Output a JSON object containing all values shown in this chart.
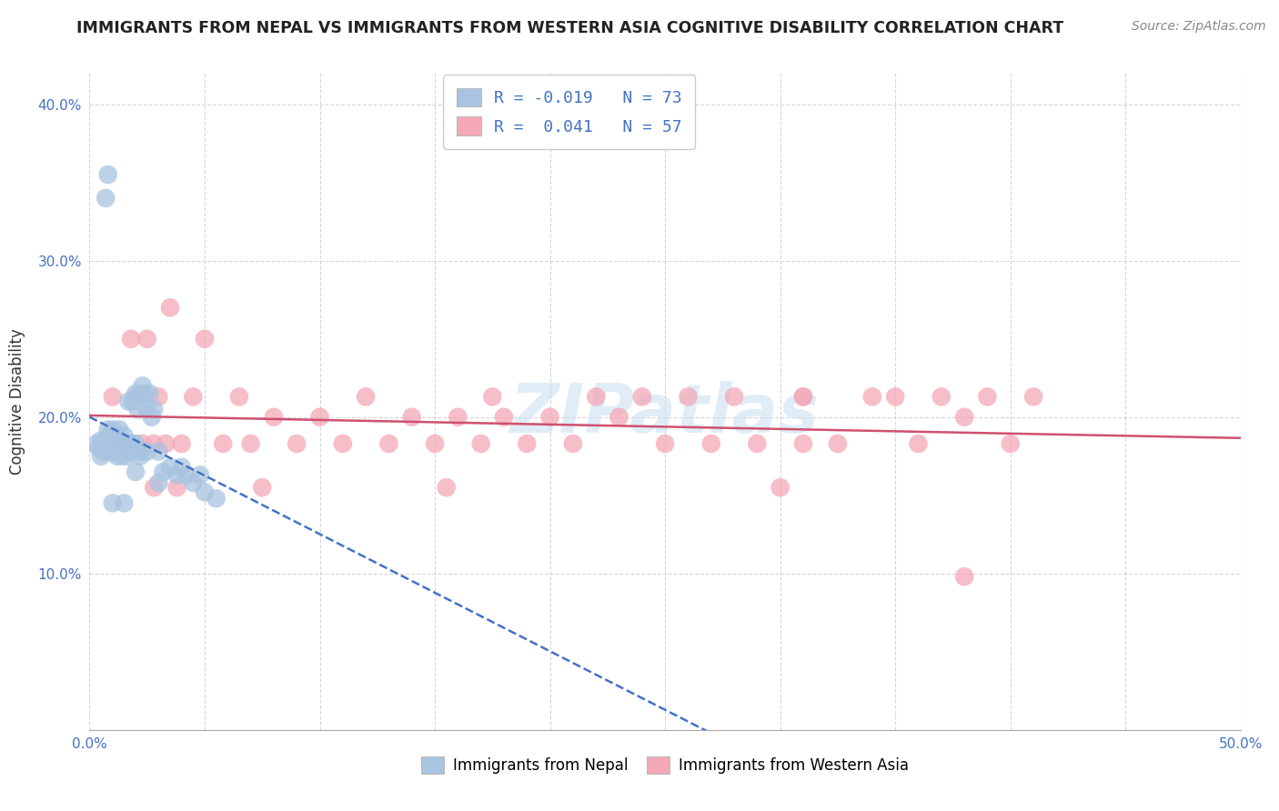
{
  "title": "IMMIGRANTS FROM NEPAL VS IMMIGRANTS FROM WESTERN ASIA COGNITIVE DISABILITY CORRELATION CHART",
  "source_text": "Source: ZipAtlas.com",
  "ylabel": "Cognitive Disability",
  "xlim": [
    0.0,
    0.5
  ],
  "ylim": [
    0.0,
    0.42
  ],
  "xticks": [
    0.0,
    0.05,
    0.1,
    0.15,
    0.2,
    0.25,
    0.3,
    0.35,
    0.4,
    0.45,
    0.5
  ],
  "yticks": [
    0.0,
    0.1,
    0.2,
    0.3,
    0.4
  ],
  "nepal_R": -0.019,
  "nepal_N": 73,
  "western_asia_R": 0.041,
  "western_asia_N": 57,
  "nepal_color": "#a8c4e0",
  "western_asia_color": "#f4a8b8",
  "nepal_line_color": "#4472c4",
  "western_asia_line_color": "#d05070",
  "background_color": "#ffffff",
  "grid_color": "#cccccc",
  "watermark_text": "ZIPatlas",
  "nepal_scatter_x": [
    0.003,
    0.004,
    0.005,
    0.005,
    0.006,
    0.006,
    0.007,
    0.007,
    0.007,
    0.008,
    0.008,
    0.008,
    0.009,
    0.009,
    0.009,
    0.01,
    0.01,
    0.01,
    0.01,
    0.011,
    0.011,
    0.011,
    0.012,
    0.012,
    0.012,
    0.013,
    0.013,
    0.013,
    0.014,
    0.014,
    0.015,
    0.015,
    0.015,
    0.016,
    0.016,
    0.017,
    0.017,
    0.018,
    0.018,
    0.019,
    0.02,
    0.02,
    0.021,
    0.022,
    0.023,
    0.024,
    0.025,
    0.026,
    0.027,
    0.028,
    0.03,
    0.032,
    0.035,
    0.038,
    0.04,
    0.042,
    0.045,
    0.048,
    0.05,
    0.055,
    0.02,
    0.015,
    0.01,
    0.022,
    0.018,
    0.025,
    0.012,
    0.03,
    0.017,
    0.022,
    0.008,
    0.011,
    0.014
  ],
  "nepal_scatter_y": [
    0.183,
    0.18,
    0.175,
    0.185,
    0.178,
    0.182,
    0.34,
    0.178,
    0.182,
    0.355,
    0.192,
    0.187,
    0.183,
    0.178,
    0.185,
    0.183,
    0.178,
    0.192,
    0.185,
    0.183,
    0.188,
    0.178,
    0.183,
    0.188,
    0.175,
    0.183,
    0.178,
    0.192,
    0.183,
    0.175,
    0.183,
    0.178,
    0.188,
    0.183,
    0.175,
    0.21,
    0.183,
    0.178,
    0.183,
    0.21,
    0.215,
    0.183,
    0.205,
    0.215,
    0.22,
    0.215,
    0.205,
    0.215,
    0.2,
    0.205,
    0.158,
    0.165,
    0.168,
    0.163,
    0.168,
    0.163,
    0.158,
    0.163,
    0.152,
    0.148,
    0.165,
    0.145,
    0.145,
    0.175,
    0.183,
    0.178,
    0.183,
    0.178,
    0.183,
    0.178,
    0.183,
    0.178,
    0.183
  ],
  "western_asia_scatter_x": [
    0.01,
    0.015,
    0.018,
    0.02,
    0.023,
    0.025,
    0.028,
    0.03,
    0.033,
    0.038,
    0.04,
    0.045,
    0.05,
    0.058,
    0.065,
    0.07,
    0.075,
    0.08,
    0.09,
    0.1,
    0.11,
    0.12,
    0.13,
    0.14,
    0.15,
    0.155,
    0.16,
    0.17,
    0.175,
    0.18,
    0.19,
    0.2,
    0.21,
    0.22,
    0.23,
    0.24,
    0.25,
    0.26,
    0.27,
    0.28,
    0.29,
    0.3,
    0.31,
    0.325,
    0.34,
    0.35,
    0.36,
    0.37,
    0.38,
    0.39,
    0.4,
    0.41,
    0.035,
    0.028,
    0.31,
    0.38,
    0.31
  ],
  "western_asia_scatter_y": [
    0.213,
    0.183,
    0.25,
    0.213,
    0.183,
    0.25,
    0.183,
    0.213,
    0.183,
    0.155,
    0.183,
    0.213,
    0.25,
    0.183,
    0.213,
    0.183,
    0.155,
    0.2,
    0.183,
    0.2,
    0.183,
    0.213,
    0.183,
    0.2,
    0.183,
    0.155,
    0.2,
    0.183,
    0.213,
    0.2,
    0.183,
    0.2,
    0.183,
    0.213,
    0.2,
    0.213,
    0.183,
    0.213,
    0.183,
    0.213,
    0.183,
    0.155,
    0.213,
    0.183,
    0.213,
    0.213,
    0.183,
    0.213,
    0.2,
    0.213,
    0.183,
    0.213,
    0.27,
    0.155,
    0.213,
    0.098,
    0.183
  ]
}
